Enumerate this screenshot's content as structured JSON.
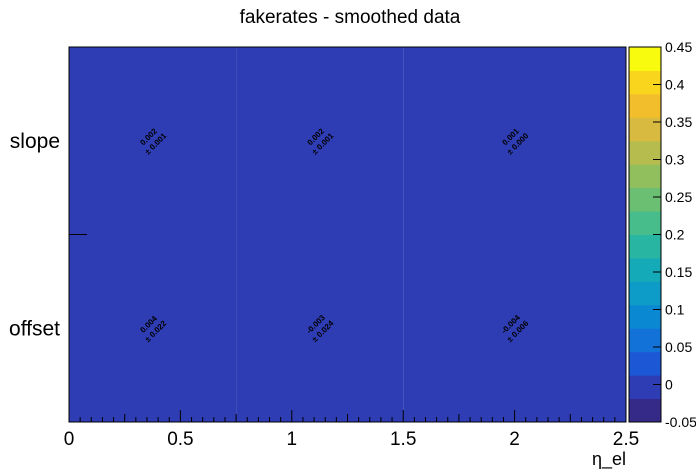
{
  "chart_data": {
    "type": "heatmap",
    "title": "fakerates - smoothed data",
    "xlabel": "η_el",
    "ylabel": "",
    "x_edges": [
      0,
      0.75,
      1.5,
      2.5
    ],
    "xlim": [
      0,
      2.5
    ],
    "x_ticks": [
      "0",
      "0.5",
      "1",
      "1.5",
      "2",
      "2.5"
    ],
    "y_categories": [
      "offset",
      "slope"
    ],
    "cells": [
      {
        "x_bin": 0,
        "y_bin": 0,
        "value": 0.004,
        "error": 0.022,
        "label": "0.004",
        "err_label": "± 0.022"
      },
      {
        "x_bin": 1,
        "y_bin": 0,
        "value": -0.003,
        "error": 0.024,
        "label": "-0.003",
        "err_label": "± 0.024"
      },
      {
        "x_bin": 2,
        "y_bin": 0,
        "value": -0.004,
        "error": 0.006,
        "label": "-0.004",
        "err_label": "± 0.006"
      },
      {
        "x_bin": 0,
        "y_bin": 1,
        "value": 0.002,
        "error": 0.001,
        "label": "0.002",
        "err_label": "± 0.001"
      },
      {
        "x_bin": 1,
        "y_bin": 1,
        "value": 0.002,
        "error": 0.001,
        "label": "0.002",
        "err_label": "± 0.001"
      },
      {
        "x_bin": 2,
        "y_bin": 1,
        "value": 0.001,
        "error": 0.0,
        "label": "0.001",
        "err_label": "± 0.000"
      }
    ],
    "zlim": [
      -0.05,
      0.45
    ],
    "colorbar_ticks": [
      "-0.05",
      "0",
      "0.05",
      "0.1",
      "0.15",
      "0.2",
      "0.25",
      "0.3",
      "0.35",
      "0.4",
      "0.45"
    ],
    "colormap": [
      "#352a87",
      "#2e3db4",
      "#1c58d6",
      "#1272d8",
      "#0b88d2",
      "#0d9bc8",
      "#14aab8",
      "#28b5a2",
      "#46bd8b",
      "#6bbf73",
      "#92bf5e",
      "#b7bc4e",
      "#d7ba3f",
      "#f2be2c",
      "#f9d51e",
      "#f9fb0e"
    ]
  }
}
